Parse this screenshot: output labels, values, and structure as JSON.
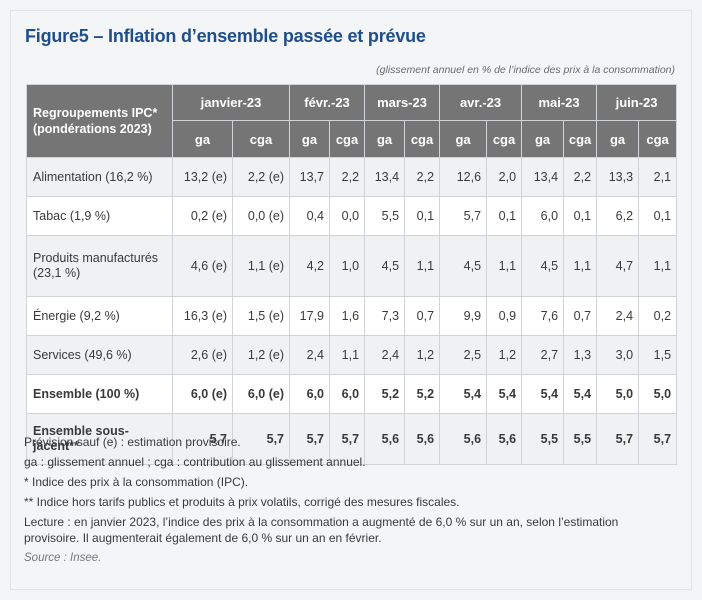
{
  "title": "Figure5 – Inflation d’ensemble passée et prévue",
  "subtitle": "(glissement annuel en % de l’indice des prix à la consommation)",
  "table": {
    "group_header": "Regroupements IPC* (pondérations 2023)",
    "months": [
      "janvier-23",
      "févr.-23",
      "mars-23",
      "avr.-23",
      "mai-23",
      "juin-23"
    ],
    "sub_headers": [
      "ga",
      "cga",
      "ga",
      "cga",
      "ga",
      "cga",
      "ga",
      "cga",
      "ga",
      "cga",
      "ga",
      "cga"
    ],
    "rows": [
      {
        "label": "Alimentation (16,2 %)",
        "values": [
          "13,2 (e)",
          "2,2 (e)",
          "13,7",
          "2,2",
          "13,4",
          "2,2",
          "12,6",
          "2,0",
          "13,4",
          "2,2",
          "13,3",
          "2,1"
        ]
      },
      {
        "label": "Tabac (1,9 %)",
        "values": [
          "0,2 (e)",
          "0,0 (e)",
          "0,4",
          "0,0",
          "5,5",
          "0,1",
          "5,7",
          "0,1",
          "6,0",
          "0,1",
          "6,2",
          "0,1"
        ]
      },
      {
        "label": "Produits manufacturés (23,1 %)",
        "values": [
          "4,6 (e)",
          "1,1 (e)",
          "4,2",
          "1,0",
          "4,5",
          "1,1",
          "4,5",
          "1,1",
          "4,5",
          "1,1",
          "4,7",
          "1,1"
        ]
      },
      {
        "label": "Énergie (9,2 %)",
        "values": [
          "16,3 (e)",
          "1,5 (e)",
          "17,9",
          "1,6",
          "7,3",
          "0,7",
          "9,9",
          "0,9",
          "7,6",
          "0,7",
          "2,4",
          "0,2"
        ]
      },
      {
        "label": "Services (49,6 %)",
        "values": [
          "2,6 (e)",
          "1,2 (e)",
          "2,4",
          "1,1",
          "2,4",
          "1,2",
          "2,5",
          "1,2",
          "2,7",
          "1,3",
          "3,0",
          "1,5"
        ]
      },
      {
        "label": "Ensemble (100 %)",
        "values": [
          "6,0 (e)",
          "6,0 (e)",
          "6,0",
          "6,0",
          "5,2",
          "5,2",
          "5,4",
          "5,4",
          "5,4",
          "5,4",
          "5,0",
          "5,0"
        ]
      },
      {
        "label": "Ensemble sous-jacent**",
        "values": [
          "5,7",
          "5,7",
          "5,7",
          "5,7",
          "5,6",
          "5,6",
          "5,6",
          "5,6",
          "5,5",
          "5,5",
          "5,7",
          "5,7"
        ]
      }
    ]
  },
  "notes": [
    "Prévision sauf (e) : estimation provisoire.",
    "ga : glissement annuel ; cga : contribution au glissement annuel.",
    "* Indice des prix à la consommation (IPC).",
    "** Indice hors tarifs publics et produits à prix volatils, corrigé des mesures fiscales.",
    "Lecture : en janvier 2023, l’indice des prix à la consommation a augmenté de 6,0 % sur un an, selon l’estimation provisoire. Il augmenterait également de 6,0 % sur un an en février."
  ],
  "source": "Source : Insee.",
  "colors": {
    "title": "#1f4e8c",
    "header_bg": "#757575",
    "row_alt": "#f0f1f3"
  }
}
